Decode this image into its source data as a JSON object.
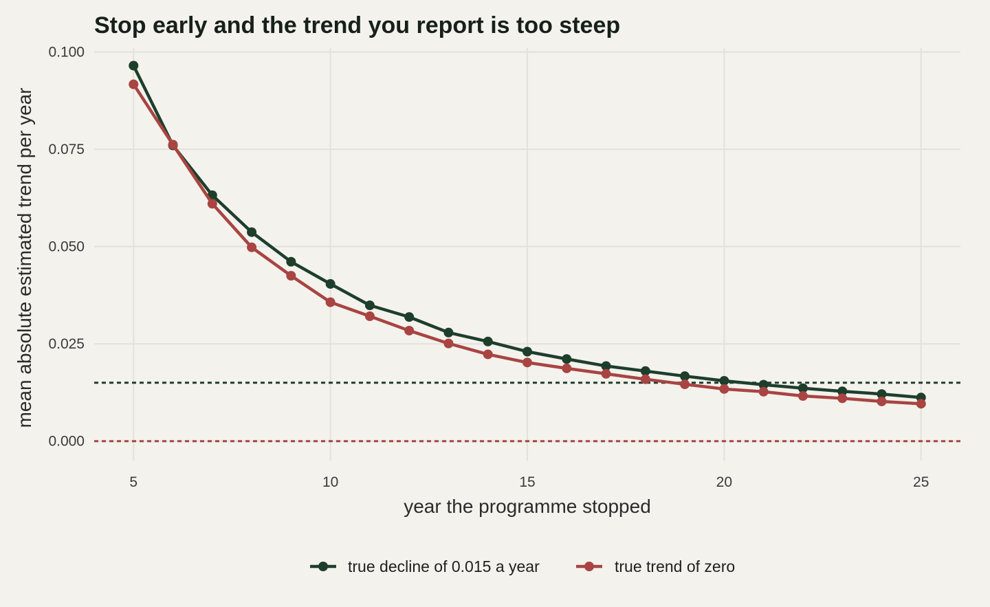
{
  "chart_data": {
    "type": "line",
    "title": "Stop early and the trend you report is too steep",
    "xlabel": "year the programme stopped",
    "ylabel": "mean absolute estimated trend per year",
    "xlim": [
      4,
      26
    ],
    "ylim": [
      -0.005,
      0.101
    ],
    "x_ticks": [
      5,
      10,
      15,
      20,
      25
    ],
    "y_ticks": [
      0.0,
      0.025,
      0.05,
      0.075,
      0.1
    ],
    "y_tick_labels": [
      "0.000",
      "0.025",
      "0.050",
      "0.075",
      "0.100"
    ],
    "grid": true,
    "legend_position": "bottom",
    "x": [
      5,
      6,
      7,
      8,
      9,
      10,
      11,
      12,
      13,
      14,
      15,
      16,
      17,
      18,
      19,
      20,
      21,
      22,
      23,
      24,
      25
    ],
    "series": [
      {
        "name": "true decline of 0.015 a year",
        "color": "#1e3e2c",
        "values": [
          0.0965,
          0.076,
          0.0632,
          0.0537,
          0.0461,
          0.0404,
          0.0349,
          0.0319,
          0.0279,
          0.0256,
          0.023,
          0.0211,
          0.0193,
          0.018,
          0.0167,
          0.0155,
          0.0145,
          0.0136,
          0.0128,
          0.0121,
          0.0112
        ]
      },
      {
        "name": "true trend of zero",
        "color": "#a84442",
        "values": [
          0.0917,
          0.0762,
          0.061,
          0.0498,
          0.0425,
          0.0357,
          0.0321,
          0.0284,
          0.0251,
          0.0223,
          0.0202,
          0.0187,
          0.0173,
          0.0159,
          0.0146,
          0.0134,
          0.0127,
          0.0116,
          0.011,
          0.0102,
          0.0096
        ]
      }
    ],
    "reference_lines": [
      {
        "y": 0.015,
        "style": "dotted",
        "color": "#1e3e2c"
      },
      {
        "y": 0.0,
        "style": "dotted",
        "color": "#a84442"
      }
    ]
  }
}
